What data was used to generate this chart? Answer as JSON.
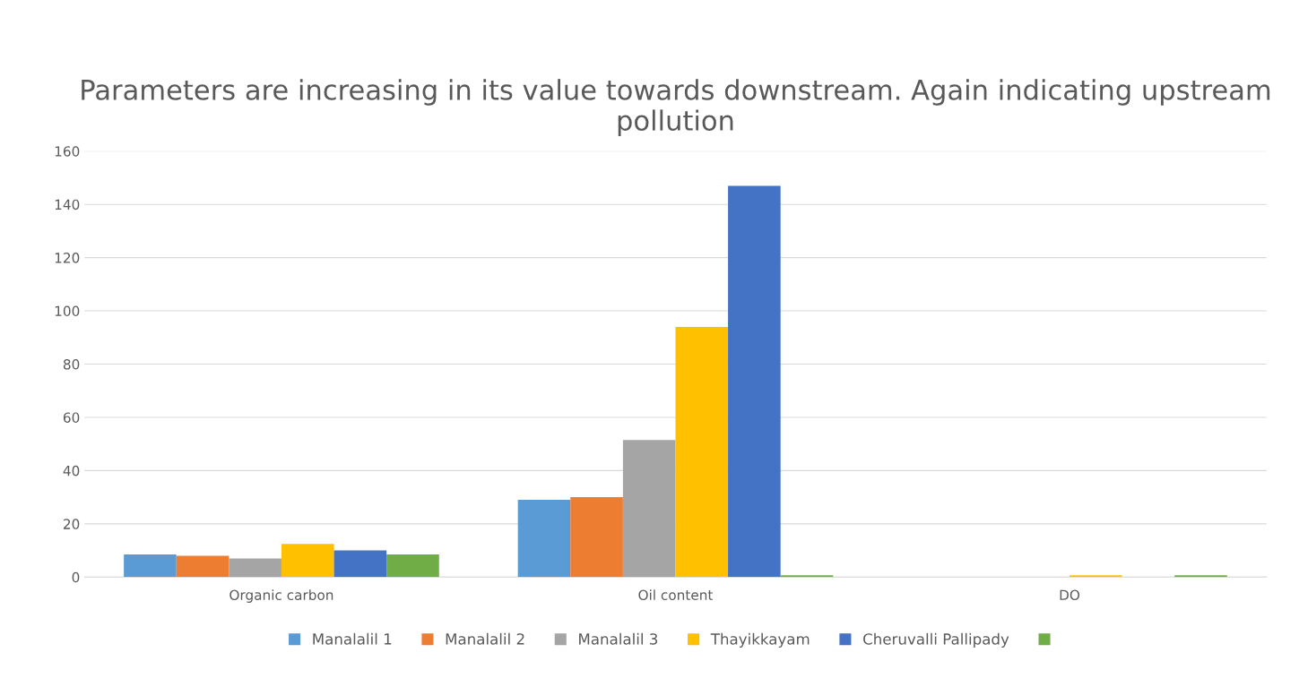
{
  "chart_data": {
    "type": "bar",
    "title": "Parameters are increasing in its value towards downstream. Again indicating upstream pollution",
    "categories": [
      "Organic carbon",
      "Oil content",
      "DO"
    ],
    "series": [
      {
        "name": "Manalalil 1",
        "color": "#5b9bd5",
        "values": [
          8.5,
          29,
          0
        ]
      },
      {
        "name": "Manalalil 2",
        "color": "#ed7d31",
        "values": [
          8,
          30,
          0
        ]
      },
      {
        "name": "Manalalil 3",
        "color": "#a5a5a5",
        "values": [
          7,
          51.5,
          0
        ]
      },
      {
        "name": "Thayikkayam",
        "color": "#ffc000",
        "values": [
          12.5,
          94,
          0.7
        ]
      },
      {
        "name": "Cheruvalli Pallipady",
        "color": "#4472c4",
        "values": [
          10,
          147,
          0
        ]
      },
      {
        "color": "#70ad47",
        "values": [
          8.5,
          0.7,
          0.7
        ]
      }
    ],
    "ylim": [
      0,
      160
    ],
    "yticks": [
      0,
      20,
      40,
      60,
      80,
      100,
      120,
      140,
      160
    ],
    "grid": "y",
    "legend": "bottom"
  }
}
